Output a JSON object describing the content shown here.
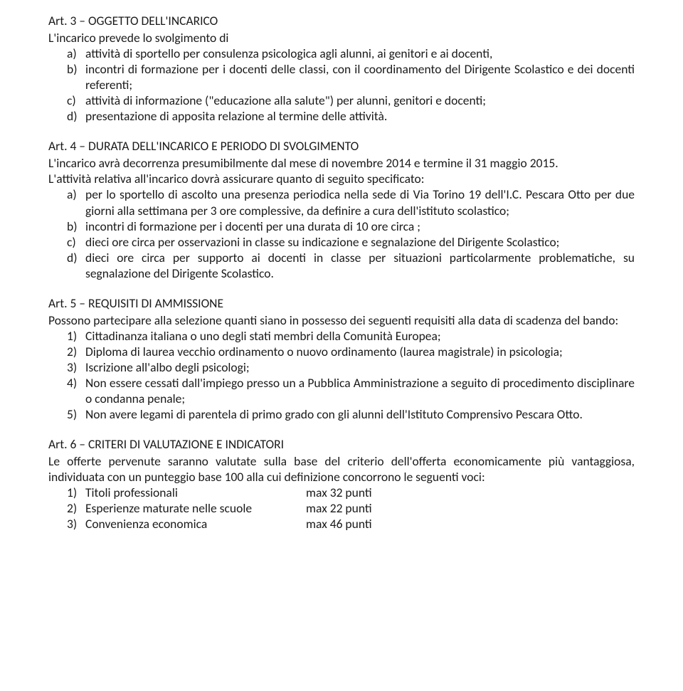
{
  "colors": {
    "text": "#1a1a1a",
    "background": "#ffffff"
  },
  "typography": {
    "font_family": "Calibri, Segoe UI, Arial, sans-serif",
    "body_fontsize_pt": 13,
    "line_height": 1.26
  },
  "art3": {
    "title": "Art. 3 – OGGETTO DELL'INCARICO",
    "intro": "L'incarico prevede lo svolgimento di",
    "items": [
      {
        "marker": "a)",
        "text": "attività di sportello per consulenza psicologica agli alunni, ai genitori e ai docenti,"
      },
      {
        "marker": "b)",
        "text": "incontri di formazione per i docenti delle classi, con il coordinamento del Dirigente Scolastico e dei docenti referenti;"
      },
      {
        "marker": "c)",
        "text": "attività di informazione (\"educazione alla salute\") per alunni, genitori e docenti;"
      },
      {
        "marker": "d)",
        "text": "presentazione di apposita relazione al termine delle attività."
      }
    ]
  },
  "art4": {
    "title": "Art. 4 – DURATA DELL'INCARICO E PERIODO DI SVOLGIMENTO",
    "para1": "L'incarico avrà decorrenza presumibilmente dal mese di novembre 2014 e termine il 31 maggio 2015.",
    "para2": "L'attività relativa all'incarico dovrà assicurare quanto di seguito specificato:",
    "items": [
      {
        "marker": "a)",
        "text": "per lo sportello di ascolto una presenza periodica nella sede di Via Torino 19 dell'I.C. Pescara Otto per due giorni alla settimana per 3 ore complessive, da definire a cura dell'istituto scolastico;"
      },
      {
        "marker": "b)",
        "text": "incontri di formazione per i docenti per una durata di 10 ore circa ;"
      },
      {
        "marker": "c)",
        "text": "dieci ore circa per osservazioni in classe su indicazione e segnalazione  del Dirigente Scolastico;"
      },
      {
        "marker": "d)",
        "text": "dieci ore circa per supporto ai docenti in classe per situazioni particolarmente problematiche, su segnalazione del Dirigente Scolastico."
      }
    ]
  },
  "art5": {
    "title": "Art. 5 – REQUISITI DI AMMISSIONE",
    "para": "Possono partecipare alla selezione quanti siano in possesso dei seguenti requisiti alla data di scadenza del bando:",
    "items": [
      {
        "marker": "1)",
        "text": "Cittadinanza italiana o uno degli stati membri della Comunità Europea;"
      },
      {
        "marker": "2)",
        "text": "Diploma di laurea vecchio ordinamento o nuovo ordinamento (laurea magistrale) in psicologia;"
      },
      {
        "marker": "3)",
        "text": "Iscrizione all'albo degli psicologi;"
      },
      {
        "marker": "4)",
        "text": "Non essere cessati dall'impiego presso un a Pubblica Amministrazione a seguito di procedimento disciplinare o condanna penale;"
      },
      {
        "marker": "5)",
        "text": "Non avere legami di parentela di primo grado con gli alunni dell'Istituto Comprensivo Pescara Otto."
      }
    ]
  },
  "art6": {
    "title": "Art. 6 – CRITERI DI VALUTAZIONE E INDICATORI",
    "para": "Le offerte pervenute saranno valutate sulla base del criterio dell'offerta economicamente più vantaggiosa, individuata con un punteggio base 100 alla cui definizione concorrono le seguenti voci:",
    "items": [
      {
        "marker": "1)",
        "label": "Titoli professionali",
        "score": "max 32 punti"
      },
      {
        "marker": "2)",
        "label": "Esperienze maturate nelle scuole",
        "score": "max 22 punti"
      },
      {
        "marker": "3)",
        "label": "Convenienza economica",
        "score": "max 46 punti"
      }
    ]
  }
}
